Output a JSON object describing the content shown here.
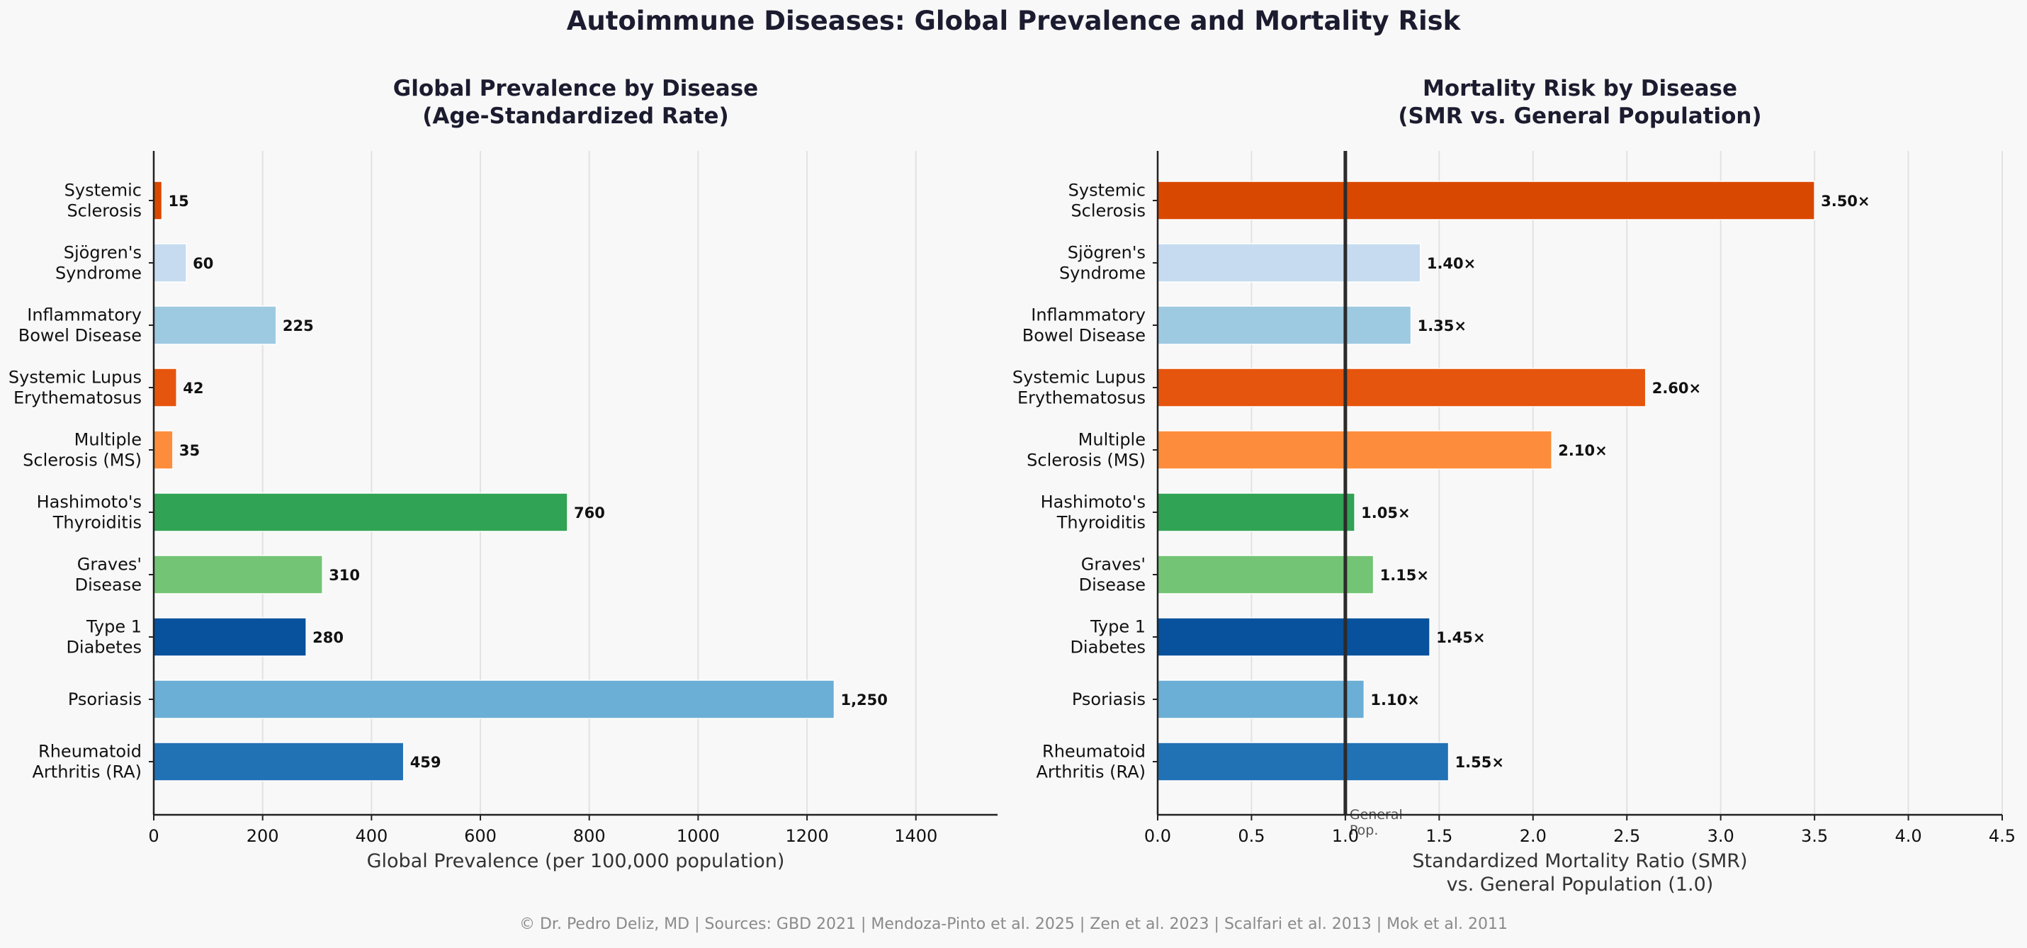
{
  "main_title": "Autoimmune Diseases: Global Prevalence and Mortality Risk",
  "footer": "© Dr. Pedro Deliz, MD | Sources: GBD 2021 | Mendoza-Pinto et al. 2025 | Zen et al. 2023 | Scalfari et al. 2013 | Mok et al. 2011",
  "chart_data": [
    {
      "type": "bar",
      "orientation": "horizontal",
      "title_lines": [
        "Global Prevalence by Disease",
        "(Age-Standardized Rate)"
      ],
      "xlabel_lines": [
        "Global Prevalence (per 100,000 population)"
      ],
      "ylabel": "",
      "xlim": [
        0,
        1550
      ],
      "xticks": [
        0,
        200,
        400,
        600,
        800,
        1000,
        1200,
        1400
      ],
      "xtick_labels": [
        "0",
        "200",
        "400",
        "600",
        "800",
        "1000",
        "1200",
        "1400"
      ],
      "grid": "vertical",
      "categories": [
        [
          "Systemic",
          "Sclerosis"
        ],
        [
          "Sjögren's",
          "Syndrome"
        ],
        [
          "Inflammatory",
          "Bowel Disease"
        ],
        [
          "Systemic Lupus",
          "Erythematosus"
        ],
        [
          "Multiple",
          "Sclerosis (MS)"
        ],
        [
          "Hashimoto's",
          "Thyroiditis"
        ],
        [
          "Graves'",
          "Disease"
        ],
        [
          "Type 1",
          "Diabetes"
        ],
        [
          "Psoriasis"
        ],
        [
          "Rheumatoid",
          "Arthritis (RA)"
        ]
      ],
      "values": [
        15,
        60,
        225,
        42,
        35,
        760,
        310,
        280,
        1250,
        459
      ],
      "value_labels": [
        "15",
        "60",
        "225",
        "42",
        "35",
        "760",
        "310",
        "280",
        "1,250",
        "459"
      ],
      "colors": [
        "#d94801",
        "#c6dbef",
        "#9ecae1",
        "#e6550d",
        "#fd8d3c",
        "#31a354",
        "#74c476",
        "#08519c",
        "#6baed6",
        "#2171b5"
      ]
    },
    {
      "type": "bar",
      "orientation": "horizontal",
      "title_lines": [
        "Mortality Risk by Disease",
        "(SMR vs. General Population)"
      ],
      "xlabel_lines": [
        "Standardized Mortality Ratio (SMR)",
        "vs. General Population (1.0)"
      ],
      "ylabel": "",
      "xlim": [
        0,
        4.5
      ],
      "xticks": [
        0,
        0.5,
        1.0,
        1.5,
        2.0,
        2.5,
        3.0,
        3.5,
        4.0,
        4.5
      ],
      "xtick_labels": [
        "0.0",
        "0.5",
        "1.0",
        "1.5",
        "2.0",
        "2.5",
        "3.0",
        "3.5",
        "4.0",
        "4.5"
      ],
      "grid": "vertical",
      "reference_line": {
        "x": 1.0,
        "label_lines": [
          "General",
          "Pop."
        ]
      },
      "categories": [
        [
          "Systemic",
          "Sclerosis"
        ],
        [
          "Sjögren's",
          "Syndrome"
        ],
        [
          "Inflammatory",
          "Bowel Disease"
        ],
        [
          "Systemic Lupus",
          "Erythematosus"
        ],
        [
          "Multiple",
          "Sclerosis (MS)"
        ],
        [
          "Hashimoto's",
          "Thyroiditis"
        ],
        [
          "Graves'",
          "Disease"
        ],
        [
          "Type 1",
          "Diabetes"
        ],
        [
          "Psoriasis"
        ],
        [
          "Rheumatoid",
          "Arthritis (RA)"
        ]
      ],
      "values": [
        3.5,
        1.4,
        1.35,
        2.6,
        2.1,
        1.05,
        1.15,
        1.45,
        1.1,
        1.55
      ],
      "value_labels": [
        "3.50×",
        "1.40×",
        "1.35×",
        "2.60×",
        "2.10×",
        "1.05×",
        "1.15×",
        "1.45×",
        "1.10×",
        "1.55×"
      ],
      "colors": [
        "#d94801",
        "#c6dbef",
        "#9ecae1",
        "#e6550d",
        "#fd8d3c",
        "#31a354",
        "#74c476",
        "#08519c",
        "#6baed6",
        "#2171b5"
      ]
    }
  ]
}
